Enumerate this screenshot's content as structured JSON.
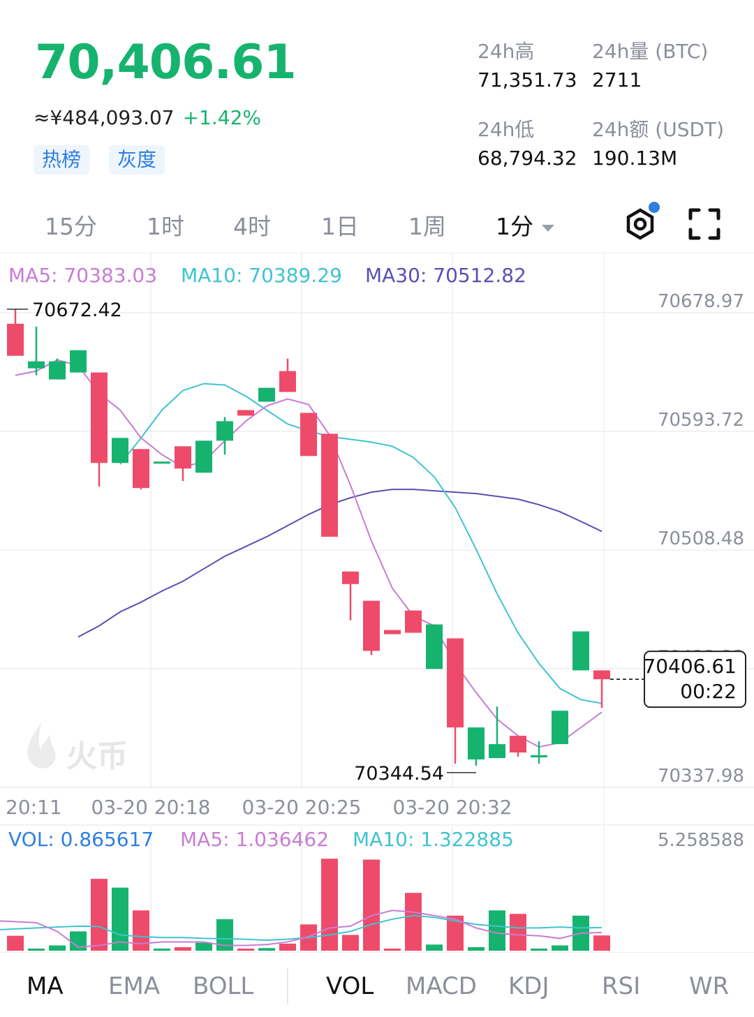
{
  "ticker": {
    "price": "70,406.61",
    "cny_value": "≈¥484,093.07",
    "change_pct": "+1.42%",
    "tags": [
      "热榜",
      "灰度"
    ]
  },
  "stats": {
    "high_label": "24h高",
    "high_value": "71,351.73",
    "low_label": "24h低",
    "low_value": "68,794.32",
    "vol_label": "24h量 (BTC)",
    "vol_value": "2711",
    "amount_label": "24h额 (USDT)",
    "amount_value": "190.13M"
  },
  "periods": [
    "15分",
    "1时",
    "4时",
    "1日",
    "1周"
  ],
  "active_period": "1分",
  "icons": {
    "settings": "hexagon-gear-icon",
    "fullscreen": "fullscreen-icon"
  },
  "colors": {
    "up": "#16b36f",
    "down": "#ee4b6a",
    "ma5": "#c77dd4",
    "ma10": "#3fc4cf",
    "ma30": "#5a4fb3",
    "vol": "#2d7fe0"
  },
  "chart_data": {
    "type": "candlestick",
    "ma_legend": [
      {
        "label": "MA5: 70383.03",
        "color": "#c77dd4"
      },
      {
        "label": "MA10: 70389.29",
        "color": "#3fc4cf"
      },
      {
        "label": "MA30: 70512.82",
        "color": "#5a4fb3"
      }
    ],
    "y_ticks": [
      "70678.97",
      "70593.72",
      "70508.48",
      "70423.23",
      "70337.98"
    ],
    "y_tick_values": [
      70678.97,
      70593.72,
      70508.48,
      70423.23,
      70337.98
    ],
    "x_ticks": [
      "20:11",
      "03-20 20:18",
      "03-20 20:25",
      "03-20 20:32"
    ],
    "max_label": "70672.42",
    "min_label": "70344.54",
    "last_price_label": "70406.61",
    "countdown": "00:22",
    "watermark": "火币",
    "candles": [
      {
        "o": 70662,
        "h": 70672.42,
        "l": 70639,
        "c": 70639,
        "v": 0.85
      },
      {
        "o": 70630,
        "h": 70660,
        "l": 70625,
        "c": 70635,
        "v": 0.05
      },
      {
        "o": 70622,
        "h": 70637,
        "l": 70622,
        "c": 70635,
        "v": 0.3
      },
      {
        "o": 70627,
        "h": 70643,
        "l": 70627,
        "c": 70643,
        "v": 1.1
      },
      {
        "o": 70627,
        "h": 70627,
        "l": 70545,
        "c": 70562,
        "v": 4.1
      },
      {
        "o": 70562,
        "h": 70580,
        "l": 70562,
        "c": 70580,
        "v": 3.6
      },
      {
        "o": 70572,
        "h": 70572,
        "l": 70543,
        "c": 70544,
        "v": 2.3
      },
      {
        "o": 70563,
        "h": 70563,
        "l": 70563,
        "c": 70563,
        "v": 0.1
      },
      {
        "o": 70574,
        "h": 70574,
        "l": 70549,
        "c": 70558,
        "v": 0.2
      },
      {
        "o": 70555,
        "h": 70578,
        "l": 70555,
        "c": 70578,
        "v": 0.45
      },
      {
        "o": 70578,
        "h": 70595,
        "l": 70568,
        "c": 70592,
        "v": 1.8
      },
      {
        "o": 70600,
        "h": 70600,
        "l": 70596,
        "c": 70596,
        "v": 0.1
      },
      {
        "o": 70606,
        "h": 70616,
        "l": 70606,
        "c": 70616,
        "v": 0.15
      },
      {
        "o": 70628,
        "h": 70637,
        "l": 70613,
        "c": 70613,
        "v": 0.4
      },
      {
        "o": 70598,
        "h": 70598,
        "l": 70567,
        "c": 70567,
        "v": 1.5
      },
      {
        "o": 70583,
        "h": 70583,
        "l": 70509,
        "c": 70509,
        "v": 5.25
      },
      {
        "o": 70484,
        "h": 70484,
        "l": 70449,
        "c": 70475,
        "v": 0.9
      },
      {
        "o": 70463,
        "h": 70463,
        "l": 70424,
        "c": 70427,
        "v": 5.2
      },
      {
        "o": 70442,
        "h": 70442,
        "l": 70439,
        "c": 70439,
        "v": 0.02
      },
      {
        "o": 70456,
        "h": 70456,
        "l": 70440,
        "c": 70440,
        "v": 3.3
      },
      {
        "o": 70414,
        "h": 70446,
        "l": 70414,
        "c": 70446,
        "v": 0.35
      },
      {
        "o": 70436,
        "h": 70436,
        "l": 70346,
        "c": 70372,
        "v": 2.0
      },
      {
        "o": 70349,
        "h": 70372,
        "l": 70344.54,
        "c": 70372,
        "v": 0.2
      },
      {
        "o": 70350,
        "h": 70387,
        "l": 70350,
        "c": 70360,
        "v": 2.3
      },
      {
        "o": 70366,
        "h": 70366,
        "l": 70351,
        "c": 70354,
        "v": 2.1
      },
      {
        "o": 70352,
        "h": 70362,
        "l": 70346,
        "c": 70352,
        "v": 0.05
      },
      {
        "o": 70360,
        "h": 70384,
        "l": 70360,
        "c": 70384,
        "v": 0.3
      },
      {
        "o": 70413,
        "h": 70441,
        "l": 70413,
        "c": 70441,
        "v": 2.0
      },
      {
        "o": 70413,
        "h": 70413,
        "l": 70386,
        "c": 70406.61,
        "v": 0.87
      }
    ],
    "ma5_line": [
      70625,
      70628,
      70636,
      70632,
      70612,
      70600,
      70580,
      70568,
      70559,
      70563,
      70578,
      70592,
      70603,
      70608,
      70604,
      70582,
      70546,
      70506,
      70472,
      70452,
      70445,
      70418,
      70397,
      70378,
      70366,
      70358,
      70361,
      70372,
      70383.03
    ],
    "ma10_line": [
      70561,
      70580,
      70600,
      70614,
      70619,
      70618,
      70610,
      70600,
      70590,
      70585,
      70581,
      70579,
      70577,
      70574,
      70566,
      70552,
      70530,
      70500,
      70468,
      70440,
      70418,
      70400,
      70392,
      70389.29
    ],
    "ma30_line": [
      70437,
      70445,
      70455,
      70462,
      70470,
      70477,
      70486,
      70495,
      70502,
      70509,
      70517,
      70525,
      70532,
      70537,
      70541,
      70543,
      70543,
      70542,
      70541,
      70540,
      70538,
      70536,
      70532,
      70527,
      70520,
      70512.82
    ],
    "vol_legend": [
      {
        "label": "VOL: 0.865617",
        "color": "#2d7fe0"
      },
      {
        "label": "MA5: 1.036462",
        "color": "#c77dd4"
      },
      {
        "label": "MA10: 1.322885",
        "color": "#3fc4cf"
      }
    ],
    "vol_max_label": "5.258588",
    "vol_max": 5.258588,
    "vol_ma5": [
      1.7,
      1.6,
      1.1,
      0.2,
      0.3,
      0.5,
      0.4,
      0.5,
      0.5,
      0.5,
      0.3,
      0.3,
      0.35,
      0.5,
      0.8,
      1.3,
      1.4,
      2.0,
      2.3,
      2.2,
      2.0,
      1.8,
      1.3,
      1.0,
      0.9,
      0.85,
      0.7,
      1.0,
      1.04
    ],
    "vol_ma10": [
      1.2,
      1.3,
      1.35,
      1.4,
      1.38,
      0.9,
      0.8,
      0.75,
      0.75,
      0.7,
      0.68,
      0.65,
      0.6,
      0.65,
      0.75,
      0.9,
      1.1,
      1.5,
      1.8,
      2.0,
      1.9,
      1.7,
      1.5,
      1.4,
      1.3,
      1.3,
      1.35,
      1.3,
      1.32
    ]
  },
  "indicators": {
    "main": [
      "MA",
      "EMA",
      "BOLL"
    ],
    "sub": [
      "VOL",
      "MACD",
      "KDJ",
      "RSI",
      "WR"
    ],
    "active_main": "MA",
    "active_sub": "VOL"
  }
}
